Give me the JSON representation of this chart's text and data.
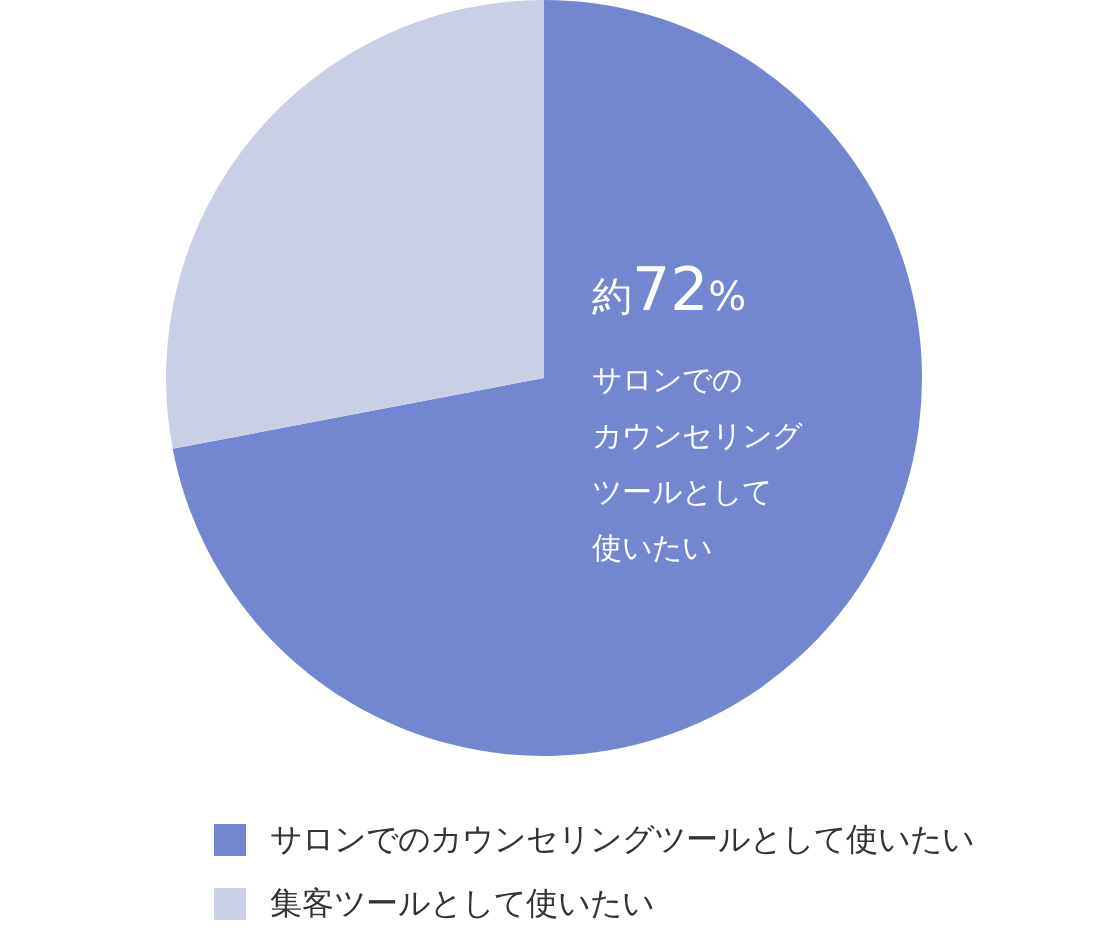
{
  "chart_data": {
    "type": "pie",
    "categories": [
      "サロンでのカウンセリングツールとして使いたい",
      "集客ツールとして使いたい"
    ],
    "values": [
      72,
      28
    ],
    "colors": [
      "#7586d0",
      "#c9d0e6"
    ],
    "value_labels": [
      "約72%",
      null
    ],
    "annotations": [
      "サロンでの",
      "カウンセリング",
      "ツールとして",
      "使いたい"
    ],
    "legend": "bottom"
  }
}
